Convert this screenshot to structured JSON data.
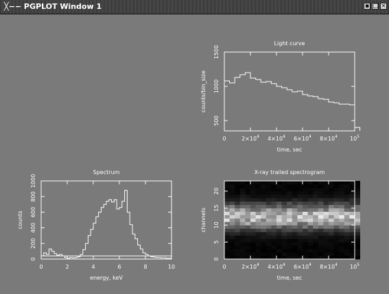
{
  "window": {
    "title": "PGPLOT Window 1",
    "icons": [
      "window-menu-icon",
      "minimize-icon",
      "maximize-icon",
      "close-icon"
    ]
  },
  "colors": {
    "background": "#7a7a7a",
    "foreground": "#ffffff"
  },
  "chart_data": [
    {
      "type": "line",
      "title": "Light curve",
      "xlabel": "time, sec",
      "ylabel": "counts/bin_size",
      "xlim": [
        0,
        100000
      ],
      "ylim": [
        350,
        1500
      ],
      "x_ticks": [
        {
          "v": 0,
          "label": "0"
        },
        {
          "v": 20000,
          "label": "2×10",
          "exp": "4"
        },
        {
          "v": 40000,
          "label": "4×10",
          "exp": "4"
        },
        {
          "v": 60000,
          "label": "6×10",
          "exp": "4"
        },
        {
          "v": 80000,
          "label": "8×10",
          "exp": "4"
        },
        {
          "v": 100000,
          "label": "10",
          "exp": "5"
        }
      ],
      "y_ticks": [
        {
          "v": 500,
          "label": "500"
        },
        {
          "v": 1000,
          "label": "1000"
        },
        {
          "v": 1500,
          "label": "1500"
        }
      ],
      "steps": {
        "bin_width": 4000,
        "x_start": 0,
        "values": [
          1080,
          1050,
          1130,
          1170,
          1200,
          1120,
          1100,
          1060,
          1070,
          1040,
          1000,
          980,
          950,
          920,
          930,
          880,
          860,
          850,
          820,
          810,
          770,
          760,
          740,
          740,
          730,
          400
        ]
      }
    },
    {
      "type": "line",
      "title": "Spectrum",
      "xlabel": "energy, keV",
      "ylabel": "counts",
      "xlim": [
        0,
        10
      ],
      "ylim": [
        0,
        1000
      ],
      "x_ticks": [
        {
          "v": 0,
          "label": "0"
        },
        {
          "v": 2,
          "label": "2"
        },
        {
          "v": 4,
          "label": "4"
        },
        {
          "v": 6,
          "label": "6"
        },
        {
          "v": 8,
          "label": "8"
        },
        {
          "v": 10,
          "label": "10"
        }
      ],
      "y_ticks": [
        {
          "v": 0,
          "label": "0"
        },
        {
          "v": 200,
          "label": "200"
        },
        {
          "v": 400,
          "label": "400"
        },
        {
          "v": 600,
          "label": "600"
        },
        {
          "v": 800,
          "label": "800"
        },
        {
          "v": 1000,
          "label": "1000"
        }
      ],
      "steps": {
        "bin_width": 0.2,
        "x_start": 0,
        "values": [
          40,
          80,
          60,
          130,
          100,
          70,
          50,
          60,
          40,
          20,
          10,
          20,
          15,
          20,
          30,
          60,
          120,
          200,
          300,
          380,
          460,
          540,
          600,
          660,
          700,
          740,
          760,
          730,
          760,
          640,
          660,
          740,
          880,
          600,
          440,
          320,
          260,
          180,
          130,
          80,
          60,
          40,
          30,
          25,
          20,
          18,
          15,
          15,
          10,
          10
        ]
      },
      "baseline": 40
    },
    {
      "type": "heatmap",
      "title": "X-ray trailed spectrogram",
      "xlabel": "time, sec",
      "ylabel": "channels",
      "xlim": [
        0,
        100000
      ],
      "ylim": [
        0,
        23
      ],
      "x_ticks": [
        {
          "v": 0,
          "label": "0"
        },
        {
          "v": 20000,
          "label": "2×10",
          "exp": "4"
        },
        {
          "v": 40000,
          "label": "4×10",
          "exp": "4"
        },
        {
          "v": 60000,
          "label": "6×10",
          "exp": "4"
        },
        {
          "v": 80000,
          "label": "8×10",
          "exp": "4"
        },
        {
          "v": 100000,
          "label": "10",
          "exp": "5"
        }
      ],
      "y_ticks": [
        {
          "v": 0,
          "label": "0"
        },
        {
          "v": 5,
          "label": "5"
        },
        {
          "v": 10,
          "label": "10"
        },
        {
          "v": 15,
          "label": "15"
        },
        {
          "v": 20,
          "label": "20"
        }
      ],
      "n_channels": 23,
      "n_time_bins": 26,
      "time_bin_width": 4000,
      "peak_channel": 12.5,
      "channel_spread": 2.6
    }
  ]
}
